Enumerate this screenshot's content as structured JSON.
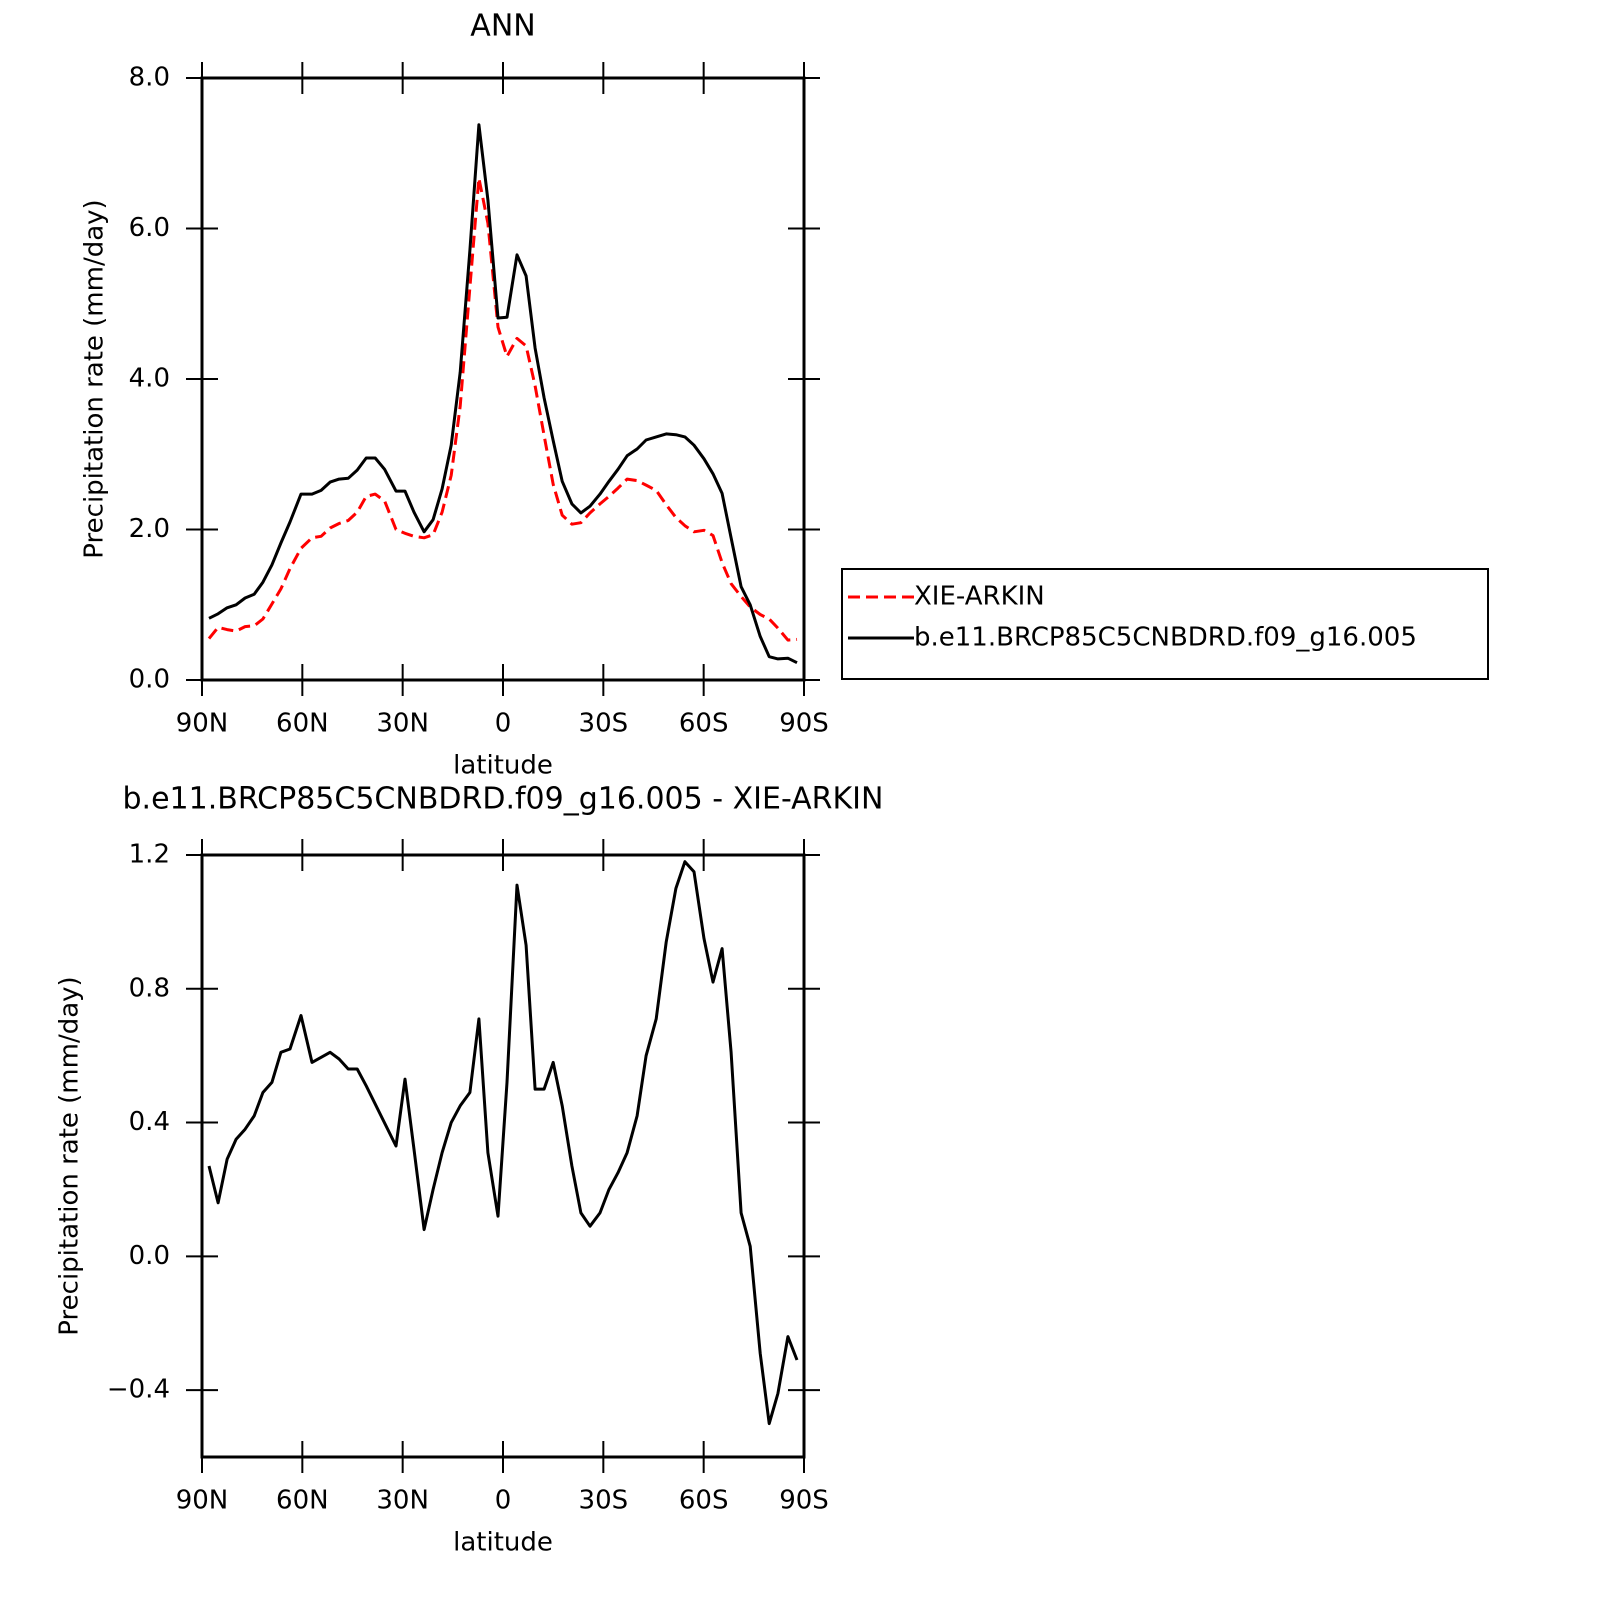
{
  "chart_data": [
    {
      "type": "line",
      "title": "ANN",
      "xlabel": "latitude",
      "ylabel": "Precipitation rate (mm/day)",
      "xlim": [
        90,
        -90
      ],
      "xticks": [
        {
          "value": 90,
          "label": "90N"
        },
        {
          "value": 60,
          "label": "60N"
        },
        {
          "value": 30,
          "label": "30N"
        },
        0,
        {
          "value": -30,
          "label": "30S"
        },
        {
          "value": -60,
          "label": "60S"
        },
        {
          "value": -90,
          "label": "90S"
        }
      ],
      "ylim": [
        0,
        8
      ],
      "yticks": [
        {
          "value": 0,
          "label": "0.0"
        },
        {
          "value": 2,
          "label": "2.0"
        },
        {
          "value": 4,
          "label": "4.0"
        },
        {
          "value": 6,
          "label": "6.0"
        },
        {
          "value": 8,
          "label": "8.0"
        }
      ],
      "legend": "right",
      "x": [
        87.9,
        85.2,
        82.5,
        79.8,
        77.1,
        74.4,
        71.8,
        69.1,
        66.4,
        63.7,
        60.4,
        57.1,
        54.4,
        51.7,
        49.0,
        46.3,
        43.6,
        40.9,
        38.2,
        35.4,
        32.0,
        29.3,
        26.6,
        23.6,
        20.9,
        18.2,
        15.5,
        12.8,
        9.9,
        7.2,
        4.5,
        1.5,
        -1.2,
        -4.2,
        -6.9,
        -9.6,
        -12.3,
        -15.0,
        -17.7,
        -20.6,
        -23.3,
        -26.0,
        -29.0,
        -31.7,
        -34.4,
        -37.1,
        -40.1,
        -42.8,
        -45.8,
        -48.8,
        -51.7,
        -54.4,
        -57.1,
        -60.1,
        -62.8,
        -65.5,
        -68.2,
        -71.2,
        -73.9,
        -76.9,
        -79.6,
        -82.2,
        -85.2,
        -87.9
      ],
      "series": [
        {
          "name": "XIE-ARKIN",
          "color": "#ff0000",
          "style": "dashed",
          "values": [
            0.55,
            0.7,
            0.67,
            0.65,
            0.71,
            0.72,
            0.81,
            1.01,
            1.21,
            1.48,
            1.75,
            1.89,
            1.91,
            2.02,
            2.08,
            2.12,
            2.23,
            2.44,
            2.47,
            2.38,
            2.0,
            1.95,
            1.91,
            1.89,
            1.93,
            2.23,
            2.72,
            3.64,
            5.22,
            6.67,
            6.07,
            4.69,
            4.3,
            4.54,
            4.44,
            3.91,
            3.25,
            2.6,
            2.19,
            2.07,
            2.09,
            2.22,
            2.34,
            2.44,
            2.55,
            2.67,
            2.65,
            2.59,
            2.52,
            2.33,
            2.16,
            2.05,
            1.97,
            1.99,
            1.92,
            1.56,
            1.28,
            1.11,
            0.97,
            0.87,
            0.81,
            0.69,
            0.53,
            0.54
          ]
        },
        {
          "name": "b.e11.BRCP85C5CNBDRD.f09_g16.005",
          "color": "#000000",
          "style": "solid",
          "values": [
            0.82,
            0.88,
            0.96,
            1.0,
            1.09,
            1.14,
            1.3,
            1.53,
            1.82,
            2.1,
            2.47,
            2.47,
            2.52,
            2.63,
            2.67,
            2.68,
            2.79,
            2.95,
            2.95,
            2.8,
            2.51,
            2.51,
            2.23,
            1.97,
            2.13,
            2.54,
            3.12,
            4.09,
            5.71,
            7.38,
            6.38,
            4.81,
            4.82,
            5.65,
            5.37,
            4.41,
            3.75,
            3.18,
            2.64,
            2.34,
            2.22,
            2.31,
            2.47,
            2.64,
            2.8,
            2.98,
            3.07,
            3.19,
            3.23,
            3.27,
            3.26,
            3.23,
            3.12,
            2.94,
            2.74,
            2.48,
            1.89,
            1.24,
            1.0,
            0.58,
            0.31,
            0.28,
            0.29,
            0.23
          ]
        }
      ]
    },
    {
      "type": "line",
      "title": "b.e11.BRCP85C5CNBDRD.f09_g16.005 - XIE-ARKIN",
      "xlabel": "latitude",
      "ylabel": "Precipitation rate (mm/day)",
      "xlim": [
        90,
        -90
      ],
      "xticks": [
        {
          "value": 90,
          "label": "90N"
        },
        {
          "value": 60,
          "label": "60N"
        },
        {
          "value": 30,
          "label": "30N"
        },
        0,
        {
          "value": -30,
          "label": "30S"
        },
        {
          "value": -60,
          "label": "60S"
        },
        {
          "value": -90,
          "label": "90S"
        }
      ],
      "ylim": [
        -0.6,
        1.2
      ],
      "yticks": [
        {
          "value": -0.4,
          "label": "−0.4"
        },
        {
          "value": 0,
          "label": "0.0"
        },
        0.4,
        0.8,
        1.2
      ],
      "x": [
        87.9,
        85.2,
        82.5,
        79.8,
        77.1,
        74.4,
        71.8,
        69.1,
        66.4,
        63.7,
        60.4,
        57.1,
        51.7,
        49.0,
        46.3,
        43.6,
        40.9,
        32.0,
        29.3,
        26.6,
        23.6,
        20.9,
        18.2,
        15.5,
        12.8,
        9.9,
        7.2,
        4.5,
        1.5,
        -1.2,
        -4.2,
        -6.9,
        -9.6,
        -12.3,
        -15.0,
        -17.7,
        -20.6,
        -23.3,
        -26.0,
        -29.0,
        -31.7,
        -34.4,
        -37.1,
        -40.1,
        -42.8,
        -45.8,
        -48.8,
        -51.7,
        -54.4,
        -57.1,
        -60.1,
        -62.8,
        -65.5,
        -68.2,
        -71.2,
        -73.9,
        -76.9,
        -79.6,
        -82.2,
        -85.2,
        -87.9
      ],
      "series": [
        {
          "color": "#000000",
          "style": "solid",
          "values": [
            0.27,
            0.16,
            0.29,
            0.35,
            0.38,
            0.42,
            0.49,
            0.52,
            0.61,
            0.62,
            0.72,
            0.58,
            0.61,
            0.59,
            0.56,
            0.56,
            0.51,
            0.33,
            0.53,
            0.32,
            0.08,
            0.2,
            0.31,
            0.4,
            0.45,
            0.49,
            0.71,
            0.31,
            0.12,
            0.52,
            1.11,
            0.93,
            0.5,
            0.5,
            0.58,
            0.45,
            0.27,
            0.13,
            0.09,
            0.13,
            0.2,
            0.25,
            0.31,
            0.42,
            0.6,
            0.71,
            0.94,
            1.1,
            1.18,
            1.15,
            0.95,
            0.82,
            0.92,
            0.61,
            0.13,
            0.03,
            -0.29,
            -0.5,
            -0.41,
            -0.24,
            -0.31
          ]
        }
      ]
    }
  ]
}
